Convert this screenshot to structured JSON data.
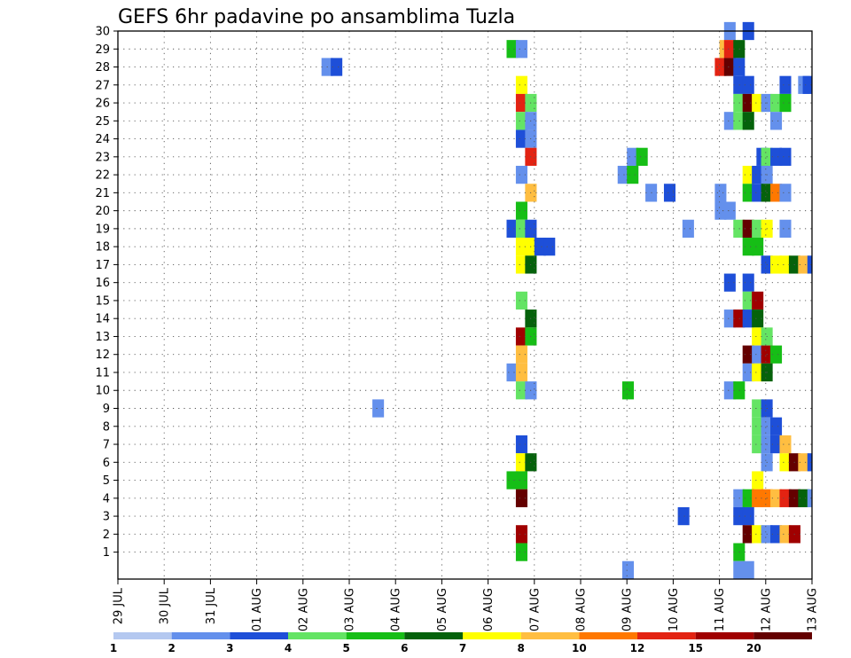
{
  "chart_data": {
    "type": "heatmap",
    "title": "GEFS 6hr padavine po ansamblima Tuzla",
    "xlabel": "",
    "ylabel": "",
    "y_ticks": [
      1,
      2,
      3,
      4,
      5,
      6,
      7,
      8,
      9,
      10,
      11,
      12,
      13,
      14,
      15,
      16,
      17,
      18,
      19,
      20,
      21,
      22,
      23,
      24,
      25,
      26,
      27,
      28,
      29,
      30
    ],
    "x_ticks": [
      "29 JUL",
      "30 JUL",
      "31 JUL",
      "01 AUG",
      "02 AUG",
      "03 AUG",
      "04 AUG",
      "05 AUG",
      "06 AUG",
      "07 AUG",
      "08 AUG",
      "09 AUG",
      "10 AUG",
      "11 AUG",
      "12 AUG",
      "13 AUG"
    ],
    "grid": true,
    "legend": {
      "placement": "bottom",
      "labels": [
        "1",
        "2",
        "3",
        "4",
        "5",
        "6",
        "7",
        "8",
        "10",
        "12",
        "15",
        "20"
      ],
      "colors": [
        "#b4c8f0",
        "#6490ec",
        "#1e4fd8",
        "#64e464",
        "#16be16",
        "#05620b",
        "#ffff00",
        "#ffbe41",
        "#ff7800",
        "#e32312",
        "#a00000",
        "#640000"
      ]
    },
    "cell_hours": 6,
    "cells": [
      [
        30,
        13.1,
        1
      ],
      [
        30,
        13.5,
        2
      ],
      [
        30,
        20.2,
        2
      ],
      [
        29,
        8.4,
        4
      ],
      [
        29,
        8.6,
        1
      ],
      [
        29,
        13.0,
        7
      ],
      [
        29,
        13.1,
        9
      ],
      [
        29,
        13.3,
        5
      ],
      [
        29,
        15.3,
        1
      ],
      [
        29,
        15.55,
        7
      ],
      [
        29,
        15.7,
        9
      ],
      [
        29,
        15.8,
        10
      ],
      [
        29,
        16.0,
        1
      ],
      [
        29,
        16.1,
        2
      ],
      [
        29,
        16.2,
        11
      ],
      [
        29,
        16.3,
        2
      ],
      [
        29,
        16.5,
        7
      ],
      [
        29,
        16.6,
        11
      ],
      [
        29,
        16.75,
        11
      ],
      [
        29,
        16.9,
        3
      ],
      [
        29,
        17.0,
        2
      ],
      [
        29,
        17.25,
        2
      ],
      [
        29,
        17.4,
        11
      ],
      [
        28,
        4.4,
        1
      ],
      [
        28,
        4.6,
        2
      ],
      [
        28,
        12.9,
        9
      ],
      [
        28,
        13.1,
        11
      ],
      [
        28,
        13.3,
        2
      ],
      [
        28,
        20.0,
        1
      ],
      [
        28,
        20.4,
        2
      ],
      [
        28,
        20.5,
        3
      ],
      [
        28,
        20.7,
        2
      ],
      [
        27,
        8.6,
        6
      ],
      [
        27,
        13.3,
        2
      ],
      [
        27,
        13.5,
        2
      ],
      [
        27,
        14.3,
        2
      ],
      [
        27,
        14.7,
        1
      ],
      [
        27,
        14.8,
        2
      ],
      [
        27,
        15.0,
        4
      ],
      [
        27,
        20.7,
        1
      ],
      [
        26,
        8.6,
        9
      ],
      [
        26,
        8.8,
        3
      ],
      [
        26,
        13.3,
        3
      ],
      [
        26,
        13.5,
        11
      ],
      [
        26,
        13.7,
        6
      ],
      [
        26,
        13.9,
        1
      ],
      [
        26,
        14.1,
        3
      ],
      [
        26,
        14.3,
        4
      ],
      [
        26,
        15.8,
        1
      ],
      [
        25,
        8.6,
        3
      ],
      [
        25,
        8.8,
        1
      ],
      [
        25,
        13.1,
        1
      ],
      [
        25,
        13.3,
        3
      ],
      [
        25,
        13.5,
        5
      ],
      [
        25,
        14.1,
        1
      ],
      [
        24,
        8.6,
        2
      ],
      [
        24,
        8.8,
        1
      ],
      [
        23,
        8.8,
        9
      ],
      [
        23,
        11.0,
        1
      ],
      [
        23,
        11.2,
        4
      ],
      [
        23,
        13.8,
        2
      ],
      [
        23,
        13.9,
        3
      ],
      [
        23,
        14.1,
        2
      ],
      [
        23,
        14.3,
        2
      ],
      [
        22,
        8.6,
        1
      ],
      [
        22,
        10.8,
        1
      ],
      [
        22,
        11.0,
        4
      ],
      [
        22,
        13.5,
        6
      ],
      [
        22,
        13.7,
        2
      ],
      [
        22,
        13.9,
        1
      ],
      [
        21,
        8.8,
        7
      ],
      [
        21,
        11.4,
        1
      ],
      [
        21,
        11.8,
        2
      ],
      [
        21,
        12.9,
        1
      ],
      [
        21,
        13.5,
        4
      ],
      [
        21,
        13.7,
        2
      ],
      [
        21,
        13.9,
        5
      ],
      [
        21,
        14.1,
        8
      ],
      [
        21,
        14.3,
        1
      ],
      [
        20,
        8.6,
        4
      ],
      [
        20,
        12.9,
        1
      ],
      [
        20,
        13.1,
        1
      ],
      [
        20,
        20.6,
        2
      ],
      [
        20,
        20.8,
        1
      ],
      [
        20,
        20.9,
        9
      ],
      [
        19,
        8.4,
        2
      ],
      [
        19,
        8.6,
        3
      ],
      [
        19,
        8.8,
        2
      ],
      [
        19,
        12.2,
        1
      ],
      [
        19,
        13.3,
        3
      ],
      [
        19,
        13.5,
        11
      ],
      [
        19,
        13.7,
        3
      ],
      [
        19,
        13.9,
        6
      ],
      [
        19,
        14.3,
        1
      ],
      [
        19,
        17.7,
        6
      ],
      [
        18,
        8.6,
        6
      ],
      [
        18,
        8.8,
        6
      ],
      [
        18,
        9.0,
        2
      ],
      [
        18,
        9.2,
        2
      ],
      [
        18,
        13.5,
        4
      ],
      [
        18,
        13.7,
        4
      ],
      [
        18,
        15.5,
        1
      ],
      [
        18,
        16.2,
        2
      ],
      [
        17,
        8.6,
        6
      ],
      [
        17,
        8.8,
        5
      ],
      [
        17,
        13.9,
        2
      ],
      [
        17,
        14.1,
        6
      ],
      [
        17,
        14.3,
        6
      ],
      [
        17,
        14.5,
        5
      ],
      [
        17,
        14.7,
        7
      ],
      [
        17,
        14.9,
        2
      ],
      [
        16,
        13.1,
        2
      ],
      [
        16,
        13.5,
        2
      ],
      [
        15,
        8.6,
        3
      ],
      [
        15,
        13.5,
        3
      ],
      [
        15,
        13.7,
        10
      ],
      [
        14,
        8.8,
        5
      ],
      [
        14,
        13.1,
        1
      ],
      [
        14,
        13.3,
        10
      ],
      [
        14,
        13.5,
        2
      ],
      [
        14,
        13.7,
        5
      ],
      [
        14,
        15.3,
        1
      ],
      [
        14,
        15.7,
        3
      ],
      [
        14,
        15.9,
        2
      ],
      [
        14,
        16.3,
        3
      ],
      [
        14,
        16.5,
        2
      ],
      [
        14,
        18.6,
        1
      ],
      [
        13,
        8.6,
        10
      ],
      [
        13,
        8.8,
        4
      ],
      [
        13,
        13.7,
        6
      ],
      [
        13,
        13.9,
        3
      ],
      [
        13,
        18.4,
        1
      ],
      [
        13,
        18.6,
        2
      ],
      [
        12,
        8.6,
        7
      ],
      [
        12,
        13.5,
        11
      ],
      [
        12,
        13.7,
        1
      ],
      [
        12,
        13.9,
        10
      ],
      [
        12,
        14.1,
        4
      ],
      [
        12,
        16.9,
        1
      ],
      [
        12,
        17.3,
        1
      ],
      [
        11,
        8.4,
        1
      ],
      [
        11,
        8.6,
        7
      ],
      [
        11,
        13.5,
        1
      ],
      [
        11,
        13.7,
        6
      ],
      [
        11,
        13.9,
        5
      ],
      [
        10,
        8.6,
        3
      ],
      [
        10,
        8.8,
        1
      ],
      [
        10,
        10.9,
        4
      ],
      [
        10,
        13.1,
        1
      ],
      [
        10,
        13.3,
        4
      ],
      [
        9,
        5.5,
        1
      ],
      [
        9,
        13.7,
        3
      ],
      [
        9,
        13.9,
        2
      ],
      [
        9,
        15.0,
        4
      ],
      [
        9,
        15.2,
        4
      ],
      [
        9,
        15.5,
        1
      ],
      [
        9,
        18.7,
        1
      ],
      [
        8,
        13.7,
        3
      ],
      [
        8,
        13.9,
        1
      ],
      [
        8,
        14.1,
        2
      ],
      [
        7,
        8.6,
        2
      ],
      [
        7,
        13.7,
        3
      ],
      [
        7,
        13.9,
        1
      ],
      [
        7,
        14.1,
        2
      ],
      [
        7,
        14.3,
        7
      ],
      [
        6,
        8.6,
        6
      ],
      [
        6,
        8.8,
        5
      ],
      [
        6,
        13.9,
        1
      ],
      [
        6,
        14.3,
        6
      ],
      [
        6,
        14.5,
        11
      ],
      [
        6,
        14.7,
        7
      ],
      [
        6,
        14.9,
        2
      ],
      [
        6,
        15.1,
        10
      ],
      [
        6,
        15.3,
        2
      ],
      [
        6,
        18.7,
        2
      ],
      [
        6,
        19.1,
        1
      ],
      [
        5,
        8.4,
        4
      ],
      [
        5,
        8.6,
        4
      ],
      [
        5,
        13.7,
        6
      ],
      [
        4,
        8.6,
        11
      ],
      [
        4,
        13.3,
        1
      ],
      [
        4,
        13.5,
        4
      ],
      [
        4,
        13.7,
        8
      ],
      [
        4,
        13.9,
        8
      ],
      [
        4,
        14.1,
        7
      ],
      [
        4,
        14.3,
        9
      ],
      [
        4,
        14.5,
        11
      ],
      [
        4,
        14.7,
        5
      ],
      [
        4,
        14.9,
        1
      ],
      [
        4,
        16.0,
        1
      ],
      [
        4,
        18.7,
        1
      ],
      [
        4,
        18.9,
        1
      ],
      [
        3,
        12.1,
        2
      ],
      [
        3,
        13.3,
        2
      ],
      [
        3,
        13.5,
        2
      ],
      [
        2,
        8.6,
        10
      ],
      [
        2,
        13.5,
        11
      ],
      [
        2,
        13.7,
        6
      ],
      [
        2,
        13.9,
        1
      ],
      [
        2,
        14.1,
        2
      ],
      [
        2,
        14.3,
        7
      ],
      [
        2,
        14.5,
        10
      ],
      [
        1,
        8.6,
        4
      ],
      [
        1,
        13.3,
        4
      ],
      [
        0,
        10.9,
        1
      ],
      [
        0,
        13.3,
        1
      ],
      [
        0,
        13.5,
        1
      ]
    ]
  }
}
